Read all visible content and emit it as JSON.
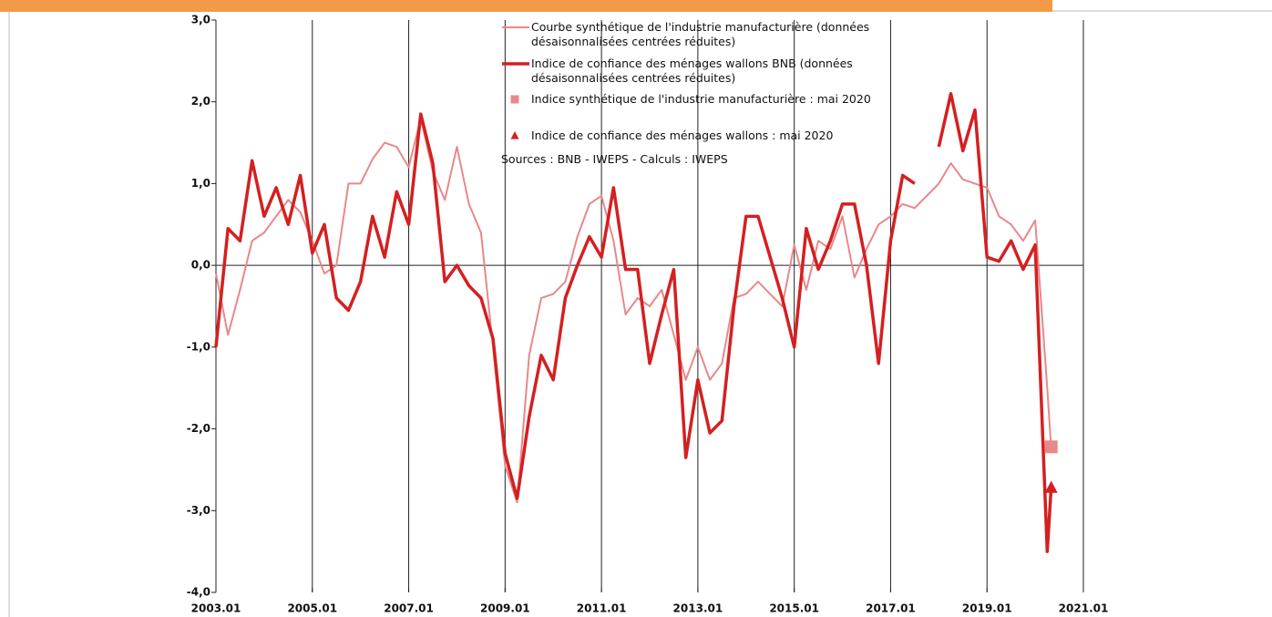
{
  "chart_data": {
    "type": "line",
    "x": [
      2003.0,
      2003.25,
      2003.5,
      2003.75,
      2004.0,
      2004.25,
      2004.5,
      2004.75,
      2005.0,
      2005.25,
      2005.5,
      2005.75,
      2006.0,
      2006.25,
      2006.5,
      2006.75,
      2007.0,
      2007.25,
      2007.5,
      2007.75,
      2008.0,
      2008.25,
      2008.5,
      2008.75,
      2009.0,
      2009.25,
      2009.5,
      2009.75,
      2010.0,
      2010.25,
      2010.5,
      2010.75,
      2011.0,
      2011.25,
      2011.5,
      2011.75,
      2012.0,
      2012.25,
      2012.5,
      2012.75,
      2013.0,
      2013.25,
      2013.5,
      2013.75,
      2014.0,
      2014.25,
      2014.5,
      2014.75,
      2015.0,
      2015.25,
      2015.5,
      2015.75,
      2016.0,
      2016.25,
      2016.5,
      2016.75,
      2017.0,
      2017.25,
      2017.5,
      2017.75,
      2018.0,
      2018.25,
      2018.5,
      2018.75,
      2019.0,
      2019.25,
      2019.5,
      2019.75,
      2020.0,
      2020.25,
      2020.333
    ],
    "xlim": [
      2003,
      2021
    ],
    "xticks": [
      {
        "value": 2003,
        "label": "2003.01"
      },
      {
        "value": 2005,
        "label": "2005.01"
      },
      {
        "value": 2007,
        "label": "2007.01"
      },
      {
        "value": 2009,
        "label": "2009.01"
      },
      {
        "value": 2011,
        "label": "2011.01"
      },
      {
        "value": 2013,
        "label": "2013.01"
      },
      {
        "value": 2015,
        "label": "2015.01"
      },
      {
        "value": 2017,
        "label": "2017.01"
      },
      {
        "value": 2019,
        "label": "2019.01"
      },
      {
        "value": 2021,
        "label": "2021.01"
      }
    ],
    "ylim": [
      -4,
      3
    ],
    "yticks": [
      {
        "value": -4,
        "label": "-4,0"
      },
      {
        "value": -3,
        "label": "-3,0"
      },
      {
        "value": -2,
        "label": "-2,0"
      },
      {
        "value": -1,
        "label": "-1,0"
      },
      {
        "value": 0,
        "label": "0,0"
      },
      {
        "value": 1,
        "label": "1,0"
      },
      {
        "value": 2,
        "label": "2,0"
      },
      {
        "value": 3,
        "label": "3,0"
      }
    ],
    "series": [
      {
        "name": "Courbe synthétique de l'industrie manufacturière (données désaisonnalisées centrées réduites)",
        "color": "#e8888a",
        "width": 2,
        "values": [
          -0.1,
          -0.85,
          -0.3,
          0.3,
          0.4,
          0.6,
          0.8,
          0.65,
          0.3,
          -0.1,
          0.0,
          1.0,
          1.0,
          1.3,
          1.5,
          1.45,
          1.2,
          1.8,
          1.15,
          0.8,
          1.45,
          0.75,
          0.4,
          -1.0,
          -2.45,
          -2.9,
          -1.1,
          -0.4,
          -0.35,
          -0.2,
          0.35,
          0.75,
          0.85,
          0.3,
          -0.6,
          -0.4,
          -0.5,
          -0.3,
          -0.85,
          -1.4,
          -1.0,
          -1.4,
          -1.2,
          -0.4,
          -0.35,
          -0.2,
          -0.35,
          -0.5,
          0.25,
          -0.3,
          0.3,
          0.2,
          0.6,
          -0.15,
          0.2,
          0.5,
          0.6,
          0.75,
          0.7,
          0.85,
          1.0,
          1.25,
          1.05,
          1.0,
          0.95,
          0.6,
          0.5,
          0.3,
          0.55,
          -1.5,
          -2.25
        ]
      },
      {
        "name": "Indice de confiance des ménages wallons BNB (données désaisonnalisées centrées réduites)",
        "color": "#d42020",
        "width": 3.5,
        "values": [
          -1.0,
          0.45,
          0.3,
          1.28,
          0.6,
          0.95,
          0.5,
          1.1,
          0.15,
          0.5,
          -0.4,
          -0.55,
          -0.2,
          0.6,
          0.1,
          0.9,
          0.5,
          1.85,
          1.25,
          -0.2,
          0.0,
          -0.25,
          -0.4,
          -0.9,
          -2.3,
          -2.85,
          -1.85,
          -1.1,
          -1.4,
          -0.4,
          0.0,
          0.35,
          0.1,
          0.95,
          -0.05,
          -0.05,
          -1.2,
          -0.6,
          -0.05,
          -2.35,
          -1.4,
          -2.05,
          -1.9,
          -0.5,
          0.6,
          0.6,
          0.1,
          -0.4,
          -1.0,
          0.45,
          -0.05,
          0.3,
          0.75,
          0.75,
          0.0,
          -1.2,
          0.3,
          1.1,
          1.0,
          null,
          1.45,
          2.1,
          1.4,
          1.9,
          0.1,
          0.05,
          0.3,
          -0.05,
          0.25,
          -3.5,
          -2.7
        ]
      }
    ],
    "markers": [
      {
        "name": "Indice synthétique de l'industrie manufacturière : mai 2020",
        "color": "#e8888a",
        "shape": "square",
        "x": 2020.333,
        "y": -2.22
      },
      {
        "name": "Indice de confiance des ménages wallons : mai 2020",
        "color": "#d42020",
        "shape": "triangle",
        "x": 2020.333,
        "y": -2.72
      }
    ],
    "source": "Sources : BNB - IWEPS - Calculs : IWEPS"
  }
}
